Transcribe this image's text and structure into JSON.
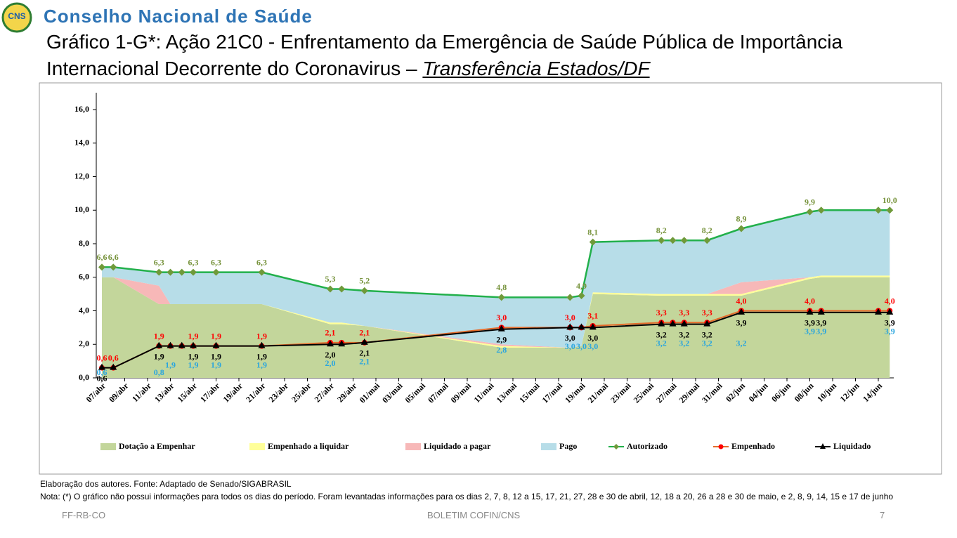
{
  "header": {
    "logo": "CNS",
    "org": "Conselho Nacional de Saúde",
    "title_lines": [
      "Gráfico 1-G*: Ação 21C0 - Enfrentamento da Emergência de Saúde Pública de Importância",
      "Internacional Decorrente do Coronavirus –"
    ],
    "subtitle": "Transferência Estados/DF"
  },
  "chart_data": {
    "type": "stacked_area_line",
    "x": [
      "07/abr",
      "08/abr",
      "12/abr",
      "13/abr",
      "14/abr",
      "15/abr",
      "17/abr",
      "21/abr",
      "27/abr",
      "28/abr",
      "30/abr",
      "12/mai",
      "18/mai",
      "19/mai",
      "20/mai",
      "26/mai",
      "27/mai",
      "28/mai",
      "30/mai",
      "02/jun",
      "08/jun",
      "09/jun",
      "14/jun",
      "15/jun"
    ],
    "xticks": [
      "07/abr",
      "09/abr",
      "11/abr",
      "13/abr",
      "15/abr",
      "17/abr",
      "19/abr",
      "21/abr",
      "23/abr",
      "25/abr",
      "27/abr",
      "29/abr",
      "01/mai",
      "03/mai",
      "05/mai",
      "07/mai",
      "09/mai",
      "11/mai",
      "13/mai",
      "15/mai",
      "17/mai",
      "19/mai",
      "21/mai",
      "23/mai",
      "25/mai",
      "27/mai",
      "29/mai",
      "31/mai",
      "02/jun",
      "04/jun",
      "06/jun",
      "08/jun",
      "10/jun",
      "12/jun",
      "14/jun"
    ],
    "ylim": [
      0,
      16
    ],
    "yticks": [
      {
        "value": 0,
        "label": "0,0"
      },
      {
        "value": 2,
        "label": "2,0"
      },
      {
        "value": 4,
        "label": "4,0"
      },
      {
        "value": 6,
        "label": "6,0"
      },
      {
        "value": 8,
        "label": "8,0"
      },
      {
        "value": 10,
        "label": "10,0"
      },
      {
        "value": 12,
        "label": "12,0"
      },
      {
        "value": 14,
        "label": "14,0"
      },
      {
        "value": 16,
        "label": "16,0"
      }
    ],
    "series": [
      {
        "name": "Dotação a Empenhar",
        "kind": "area",
        "color": "#c3d69b",
        "values": [
          6.0,
          6.0,
          4.4,
          4.4,
          4.4,
          4.4,
          4.4,
          4.4,
          3.2,
          3.2,
          3.1,
          1.8,
          1.8,
          1.9,
          5.0,
          4.9,
          4.9,
          4.9,
          4.9,
          4.9,
          5.9,
          6.0,
          6.0,
          6.0
        ]
      },
      {
        "name": "Empenhado a liquidar",
        "kind": "area",
        "color": "#ffff99",
        "values": [
          0,
          0,
          0,
          0,
          0,
          0,
          0,
          0,
          0.1,
          0.1,
          0,
          0.1,
          0,
          0,
          0.1,
          0.1,
          0.1,
          0.1,
          0.1,
          0.1,
          0.1,
          0.1,
          0.1,
          0.1
        ]
      },
      {
        "name": "Liquidado a pagar",
        "kind": "area",
        "color": "#f7b8b8",
        "values": [
          0,
          0,
          1.1,
          0,
          0,
          0,
          0,
          0,
          0,
          0,
          0,
          0.1,
          0,
          0,
          0,
          0,
          0,
          0,
          0,
          0.7,
          0,
          0,
          0,
          0
        ]
      },
      {
        "name": "Pago",
        "kind": "area",
        "color": "#b7dde8",
        "label_color": "#2aa5de",
        "values": [
          0.6,
          0.6,
          0.8,
          1.9,
          1.9,
          1.9,
          1.9,
          1.9,
          2.0,
          2.0,
          2.1,
          2.8,
          3.0,
          3.0,
          3.0,
          3.2,
          3.2,
          3.2,
          3.2,
          3.2,
          3.9,
          3.9,
          3.9,
          3.9
        ],
        "value_labels": [
          "0,6",
          null,
          "0,8",
          "1,9",
          null,
          "1,9",
          "1,9",
          "1,9",
          "2,0",
          null,
          "2,1",
          "2,8",
          "3,0",
          "3,0",
          "3,0",
          "3,2",
          null,
          "3,2",
          "3,2",
          "3,2",
          "3,9",
          "3,9",
          null,
          "3,9"
        ]
      },
      {
        "name": "Autorizado",
        "kind": "line",
        "color": "#22b04b",
        "marker": "diamond",
        "marker_color": "#6f9a3a",
        "label_color": "#77933c",
        "values": [
          6.6,
          6.6,
          6.3,
          6.3,
          6.3,
          6.3,
          6.3,
          6.3,
          5.3,
          5.3,
          5.2,
          4.8,
          4.8,
          4.9,
          8.1,
          8.2,
          8.2,
          8.2,
          8.2,
          8.9,
          9.9,
          10.0,
          10.0,
          10.0
        ],
        "value_labels": [
          "6,6",
          "6,6",
          "6,3",
          null,
          null,
          "6,3",
          "6,3",
          "6,3",
          "5,3",
          null,
          "5,2",
          "4,8",
          null,
          "4,9",
          "8,1",
          "8,2",
          null,
          null,
          "8,2",
          "8,9",
          "9,9",
          null,
          null,
          "10,0"
        ]
      },
      {
        "name": "Empenhado",
        "kind": "line",
        "color": "#e46c2b",
        "marker": "circle",
        "marker_color": "#ff0000",
        "label_color": "#ff0000",
        "values": [
          0.6,
          0.6,
          1.9,
          1.9,
          1.9,
          1.9,
          1.9,
          1.9,
          2.1,
          2.1,
          2.1,
          3.0,
          3.0,
          3.0,
          3.1,
          3.3,
          3.3,
          3.3,
          3.3,
          4.0,
          4.0,
          4.0,
          4.0,
          4.0
        ],
        "value_labels": [
          "0,6",
          "0,6",
          "1,9",
          null,
          null,
          "1,9",
          "1,9",
          "1,9",
          "2,1",
          null,
          "2,1",
          "3,0",
          "3,0",
          null,
          "3,1",
          "3,3",
          null,
          "3,3",
          "3,3",
          "4,0",
          "4,0",
          null,
          null,
          "4,0"
        ]
      },
      {
        "name": "Liquidado",
        "kind": "line",
        "color": "#000000",
        "marker": "triangle",
        "marker_color": "#000000",
        "label_color": "#000000",
        "values": [
          0.6,
          0.6,
          1.9,
          1.9,
          1.9,
          1.9,
          1.9,
          1.9,
          2.0,
          2.0,
          2.1,
          2.9,
          3.0,
          3.0,
          3.0,
          3.2,
          3.2,
          3.2,
          3.2,
          3.9,
          3.9,
          3.9,
          3.9,
          3.9
        ],
        "value_labels": [
          "0,6",
          null,
          "1,9",
          null,
          null,
          "1,9",
          "1,9",
          "1,9",
          "2,0",
          null,
          "2,1",
          "2,9",
          "3,0",
          null,
          "3,0",
          "3,2",
          null,
          "3,2",
          "3,2",
          "3,9",
          "3,9",
          "3,9",
          null,
          "3,9"
        ]
      }
    ]
  },
  "source": "Elaboração dos autores. Fonte: Adaptado de Senado/SIGABRASIL",
  "note": "Nota: (*) O gráfico não possui informações para todos os dias do período. Foram levantadas informações para os dias 2, 7, 8, 12 a 15, 17, 21, 27, 28 e 30 de abril, 12, 18 a 20, 26 a 28 e 30 de maio, e 2, 8, 9, 14, 15 e 17 de junho",
  "footer": {
    "left": "FF-RB-CO",
    "center": "BOLETIM COFIN/CNS",
    "page": 7
  }
}
